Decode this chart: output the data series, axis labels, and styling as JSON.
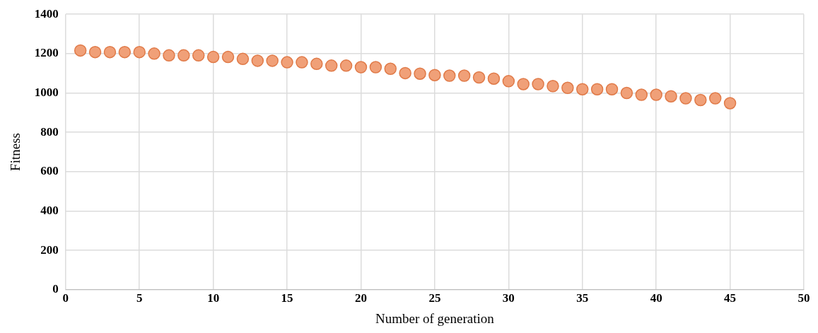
{
  "chart_data": {
    "type": "scatter",
    "xlabel": "Number of generation",
    "ylabel": "Fitness",
    "x": [
      1,
      2,
      3,
      4,
      5,
      6,
      7,
      8,
      9,
      10,
      11,
      12,
      13,
      14,
      15,
      16,
      17,
      18,
      19,
      20,
      21,
      22,
      23,
      24,
      25,
      26,
      27,
      28,
      29,
      30,
      31,
      32,
      33,
      34,
      35,
      36,
      37,
      38,
      39,
      40,
      41,
      42,
      43,
      44,
      45
    ],
    "series": [
      {
        "color": "#f0a078",
        "values": [
          1216,
          1208,
          1208,
          1208,
          1208,
          1200,
          1191,
          1191,
          1191,
          1183,
          1183,
          1173,
          1164,
          1164,
          1156,
          1156,
          1148,
          1139,
          1139,
          1131,
          1131,
          1123,
          1101,
          1098,
          1091,
          1088,
          1088,
          1079,
          1073,
          1060,
          1045,
          1045,
          1035,
          1026,
          1019,
          1019,
          1019,
          1000,
          991,
          991,
          983,
          973,
          964,
          973,
          948
        ]
      }
    ],
    "xlim": [
      0,
      50
    ],
    "xticks": [
      0,
      5,
      10,
      15,
      20,
      25,
      30,
      35,
      40,
      45,
      50
    ],
    "ylim": [
      0,
      1400
    ],
    "yticks": [
      0,
      200,
      400,
      600,
      800,
      1000,
      1200,
      1400
    ],
    "grid": true,
    "legend": false,
    "marker": "circle"
  }
}
